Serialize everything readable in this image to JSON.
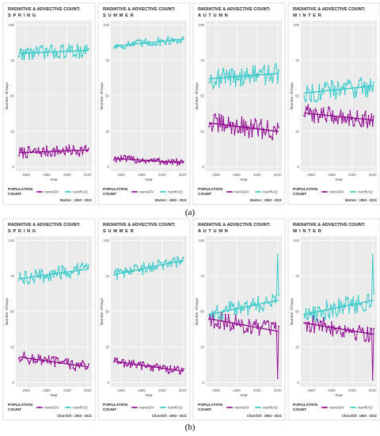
{
  "figure": {
    "captions": [
      "(a)",
      "(b)"
    ],
    "panel_title_line1": "RADIATIVE & ADVECTIVE COUNT:",
    "seasons": [
      "SPRING",
      "SUMMER",
      "AUTUMN",
      "WINTER"
    ],
    "axis": {
      "xlabel": "Year",
      "ylabel": "Number of Days",
      "x_ticks": [
        1960,
        1980,
        2000,
        2020
      ],
      "y_ticks": [
        0,
        25,
        50,
        75,
        100
      ]
    },
    "legend": {
      "title_line1": "POPULATION",
      "title_line2": "COUNT",
      "items": [
        "numADV",
        "numRAD"
      ]
    },
    "colors": {
      "adv": "#8e008e",
      "rad": "#2dc8c8",
      "panel_bg": "#ebebeb",
      "grid": "#ffffff"
    }
  },
  "chart_data": [
    {
      "type": "line",
      "station": "Warton : 1953 - 2021",
      "facet": "SPRING",
      "xlim": [
        1953,
        2021
      ],
      "ylim": [
        0,
        100
      ],
      "series": [
        {
          "name": "numADV",
          "start": 10,
          "end": 12,
          "noise": 4
        },
        {
          "name": "numRAD",
          "start": 80,
          "end": 82,
          "noise": 5
        }
      ]
    },
    {
      "type": "line",
      "station": "Warton : 1953 - 2021",
      "facet": "SUMMER",
      "xlim": [
        1953,
        2021
      ],
      "ylim": [
        0,
        100
      ],
      "series": [
        {
          "name": "numADV",
          "start": 6,
          "end": 3,
          "noise": 2.5
        },
        {
          "name": "numRAD",
          "start": 85,
          "end": 90,
          "noise": 3
        }
      ]
    },
    {
      "type": "line",
      "station": "Warton : 1953 - 2021",
      "facet": "AUTUMN",
      "xlim": [
        1953,
        2021
      ],
      "ylim": [
        0,
        100
      ],
      "series": [
        {
          "name": "numADV",
          "start": 31,
          "end": 25,
          "noise": 7
        },
        {
          "name": "numRAD",
          "start": 62,
          "end": 66,
          "noise": 7
        }
      ]
    },
    {
      "type": "line",
      "station": "Warton : 1953 - 2021",
      "facet": "WINTER",
      "xlim": [
        1953,
        2021
      ],
      "ylim": [
        0,
        100
      ],
      "series": [
        {
          "name": "numADV",
          "start": 38,
          "end": 33,
          "noise": 6
        },
        {
          "name": "numRAD",
          "start": 52,
          "end": 57,
          "noise": 7
        }
      ]
    },
    {
      "type": "line",
      "station": "Churchill : 1953 - 2021",
      "facet": "SPRING",
      "xlim": [
        1953,
        2021
      ],
      "ylim": [
        0,
        100
      ],
      "series": [
        {
          "name": "numADV",
          "start": 18,
          "end": 11,
          "noise": 4
        },
        {
          "name": "numRAD",
          "start": 73,
          "end": 80,
          "noise": 5
        }
      ]
    },
    {
      "type": "line",
      "station": "Churchill : 1953 - 2021",
      "facet": "SUMMER",
      "xlim": [
        1953,
        2021
      ],
      "ylim": [
        0,
        100
      ],
      "series": [
        {
          "name": "numADV",
          "start": 15,
          "end": 8,
          "noise": 3
        },
        {
          "name": "numRAD",
          "start": 76,
          "end": 86,
          "noise": 4
        }
      ]
    },
    {
      "type": "line",
      "station": "Churchill : 1953 - 2021",
      "facet": "AUTUMN",
      "xlim": [
        1953,
        2021
      ],
      "ylim": [
        0,
        100
      ],
      "series": [
        {
          "name": "numADV",
          "start": 45,
          "end": 36,
          "noise": 6,
          "spike": 3
        },
        {
          "name": "numRAD",
          "start": 48,
          "end": 58,
          "noise": 6,
          "spike": 90
        }
      ]
    },
    {
      "type": "line",
      "station": "Churchill : 1953 - 2021",
      "facet": "WINTER",
      "xlim": [
        1953,
        2021
      ],
      "ylim": [
        0,
        100
      ],
      "series": [
        {
          "name": "numADV",
          "start": 42,
          "end": 34,
          "noise": 6,
          "spike": 2
        },
        {
          "name": "numRAD",
          "start": 48,
          "end": 58,
          "noise": 7,
          "spike": 90
        }
      ]
    }
  ]
}
